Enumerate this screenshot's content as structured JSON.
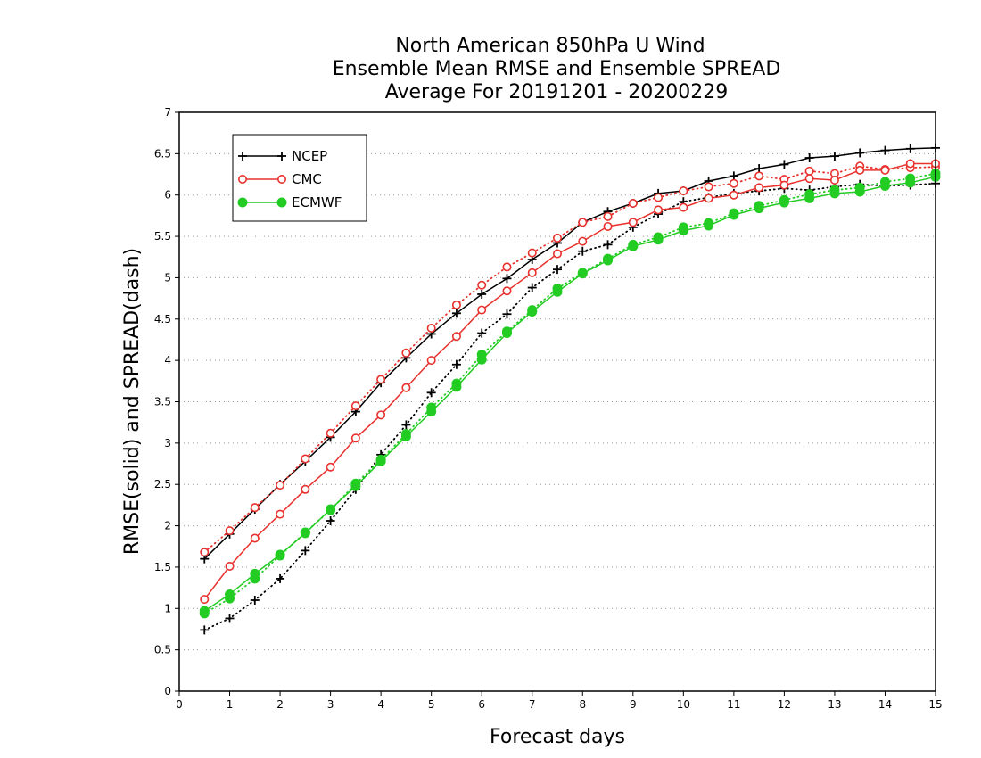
{
  "chart_data": {
    "type": "line",
    "title_lines": [
      "North American 850hPa U Wind",
      "Ensemble Mean RMSE and Ensemble SPREAD",
      "Average For 20191201 - 20200229"
    ],
    "xlabel": "Forecast days",
    "ylabel": "RMSE(solid) and SPREAD(dash)",
    "xlim": [
      0,
      15
    ],
    "ylim": [
      0,
      7
    ],
    "x_ticks": [
      "0",
      "1",
      "2",
      "3",
      "4",
      "5",
      "6",
      "7",
      "8",
      "9",
      "10",
      "11",
      "12",
      "13",
      "14",
      "15"
    ],
    "y_ticks": [
      "0",
      "0.5",
      "1",
      "1.5",
      "2",
      "2.5",
      "3",
      "3.5",
      "4",
      "4.5",
      "5",
      "5.5",
      "6",
      "6.5",
      "7"
    ],
    "grid": "horizontal dotted",
    "legend_position": "top-left",
    "x": [
      0.5,
      1,
      1.5,
      2,
      2.5,
      3,
      3.5,
      4,
      4.5,
      5,
      5.5,
      6,
      6.5,
      7,
      7.5,
      8,
      8.5,
      9,
      9.5,
      10,
      10.5,
      11,
      11.5,
      12,
      12.5,
      13,
      13.5,
      14,
      14.5,
      15
    ],
    "series": [
      {
        "name": "NCEP",
        "color": "#000000",
        "marker": "plus",
        "rmse": [
          1.6,
          1.9,
          2.2,
          2.5,
          2.78,
          3.07,
          3.38,
          3.73,
          4.03,
          4.32,
          4.57,
          4.8,
          4.99,
          5.22,
          5.42,
          5.67,
          5.8,
          5.9,
          6.02,
          6.05,
          6.17,
          6.23,
          6.32,
          6.37,
          6.45,
          6.47,
          6.51,
          6.54,
          6.56,
          6.57
        ],
        "spread": [
          0.74,
          0.88,
          1.1,
          1.36,
          1.7,
          2.06,
          2.44,
          2.86,
          3.22,
          3.61,
          3.95,
          4.33,
          4.56,
          4.88,
          5.1,
          5.32,
          5.4,
          5.61,
          5.77,
          5.92,
          5.97,
          6.02,
          6.05,
          6.08,
          6.06,
          6.1,
          6.13,
          6.11,
          6.12,
          6.14
        ]
      },
      {
        "name": "CMC",
        "color": "#e8302c",
        "marker": "open-circle",
        "rmse": [
          1.11,
          1.51,
          1.85,
          2.14,
          2.44,
          2.71,
          3.06,
          3.34,
          3.67,
          4.0,
          4.29,
          4.61,
          4.84,
          5.06,
          5.29,
          5.44,
          5.62,
          5.67,
          5.82,
          5.85,
          5.96,
          6.0,
          6.09,
          6.12,
          6.2,
          6.18,
          6.3,
          6.3,
          6.38,
          6.38
        ],
        "spread": [
          1.68,
          1.94,
          2.22,
          2.49,
          2.81,
          3.12,
          3.45,
          3.77,
          4.09,
          4.39,
          4.67,
          4.91,
          5.13,
          5.3,
          5.48,
          5.67,
          5.74,
          5.9,
          5.97,
          6.05,
          6.1,
          6.14,
          6.23,
          6.19,
          6.29,
          6.26,
          6.35,
          6.31,
          6.33,
          6.34
        ]
      },
      {
        "name": "ECMWF",
        "color": "#22cc22",
        "marker": "filled-circle",
        "rmse": [
          0.97,
          1.17,
          1.42,
          1.65,
          1.91,
          2.2,
          2.48,
          2.78,
          3.08,
          3.38,
          3.68,
          4.01,
          4.33,
          4.59,
          4.83,
          5.05,
          5.21,
          5.38,
          5.46,
          5.57,
          5.63,
          5.76,
          5.84,
          5.91,
          5.96,
          6.02,
          6.04,
          6.11,
          6.15,
          6.22
        ],
        "spread": [
          0.94,
          1.12,
          1.36,
          1.64,
          1.92,
          2.19,
          2.51,
          2.8,
          3.11,
          3.43,
          3.72,
          4.07,
          4.35,
          4.61,
          4.87,
          5.06,
          5.23,
          5.4,
          5.49,
          5.61,
          5.66,
          5.78,
          5.87,
          5.94,
          6.01,
          6.06,
          6.09,
          6.16,
          6.2,
          6.26
        ]
      }
    ]
  }
}
